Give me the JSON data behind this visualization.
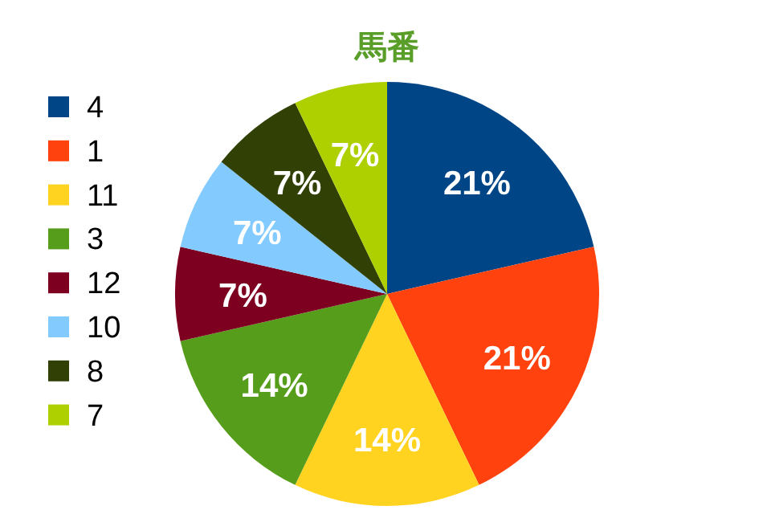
{
  "chart_data": {
    "type": "pie",
    "title": "馬番",
    "categories": [
      "4",
      "1",
      "11",
      "3",
      "12",
      "10",
      "8",
      "7"
    ],
    "values": [
      21,
      21,
      14,
      14,
      7,
      7,
      7,
      7
    ],
    "value_labels": [
      "21%",
      "21%",
      "14%",
      "14%",
      "7%",
      "7%",
      "7%",
      "7%"
    ],
    "colors": [
      "#004586",
      "#ff420e",
      "#ffd320",
      "#579d1c",
      "#7e0021",
      "#83caff",
      "#314004",
      "#aecf00"
    ],
    "legend": "left"
  }
}
